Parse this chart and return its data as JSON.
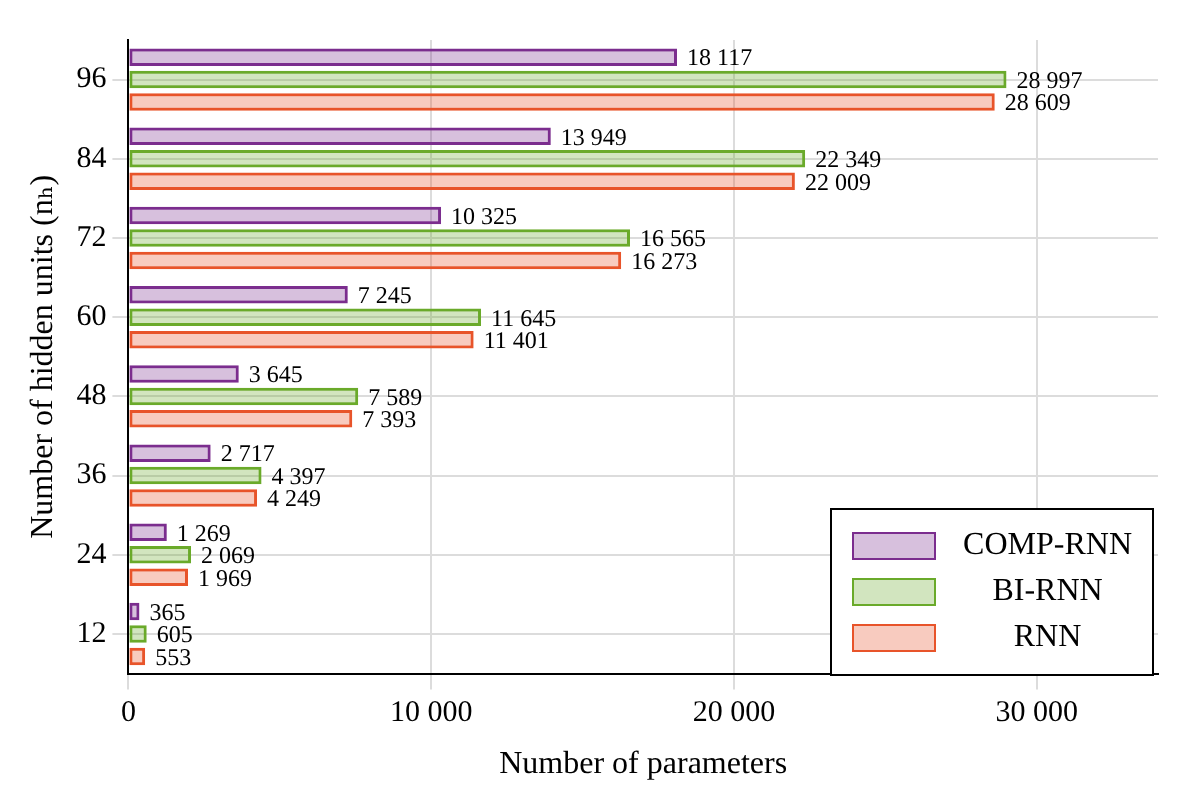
{
  "chart_data": {
    "type": "bar",
    "orientation": "horizontal",
    "xlabel": "Number of parameters",
    "ylabel": "Number of hidden units (nₕ)",
    "categories": [
      "96",
      "84",
      "72",
      "60",
      "48",
      "36",
      "24",
      "12"
    ],
    "series": [
      {
        "name": "COMP-RNN",
        "color": "#7b2d8e",
        "values": [
          18117,
          13949,
          10325,
          7245,
          3645,
          2717,
          1269,
          365
        ],
        "value_labels": [
          "18 117",
          "13 949",
          "10 325",
          "7 245",
          "3 645",
          "2 717",
          "1 269",
          "365"
        ]
      },
      {
        "name": "BI-RNN",
        "color": "#6aaa2a",
        "values": [
          28997,
          22349,
          16565,
          11645,
          7589,
          4397,
          2069,
          605
        ],
        "value_labels": [
          "28 997",
          "22 349",
          "16 565",
          "11 645",
          "7 589",
          "4 397",
          "2 069",
          "605"
        ]
      },
      {
        "name": "RNN",
        "color": "#e8542a",
        "values": [
          28609,
          22009,
          16273,
          11401,
          7393,
          4249,
          1969,
          553
        ],
        "value_labels": [
          "28 609",
          "22 009",
          "16 273",
          "11 401",
          "7 393",
          "4 249",
          "1 969",
          "553"
        ]
      }
    ],
    "xlim": [
      0,
      34000
    ],
    "xticks": [
      0,
      {
        "value": 10000,
        "label": "10 000"
      },
      {
        "value": 20000,
        "label": "20 000"
      },
      {
        "value": 30000,
        "label": "30 000"
      }
    ],
    "grid": true,
    "legend": "bottom right"
  }
}
